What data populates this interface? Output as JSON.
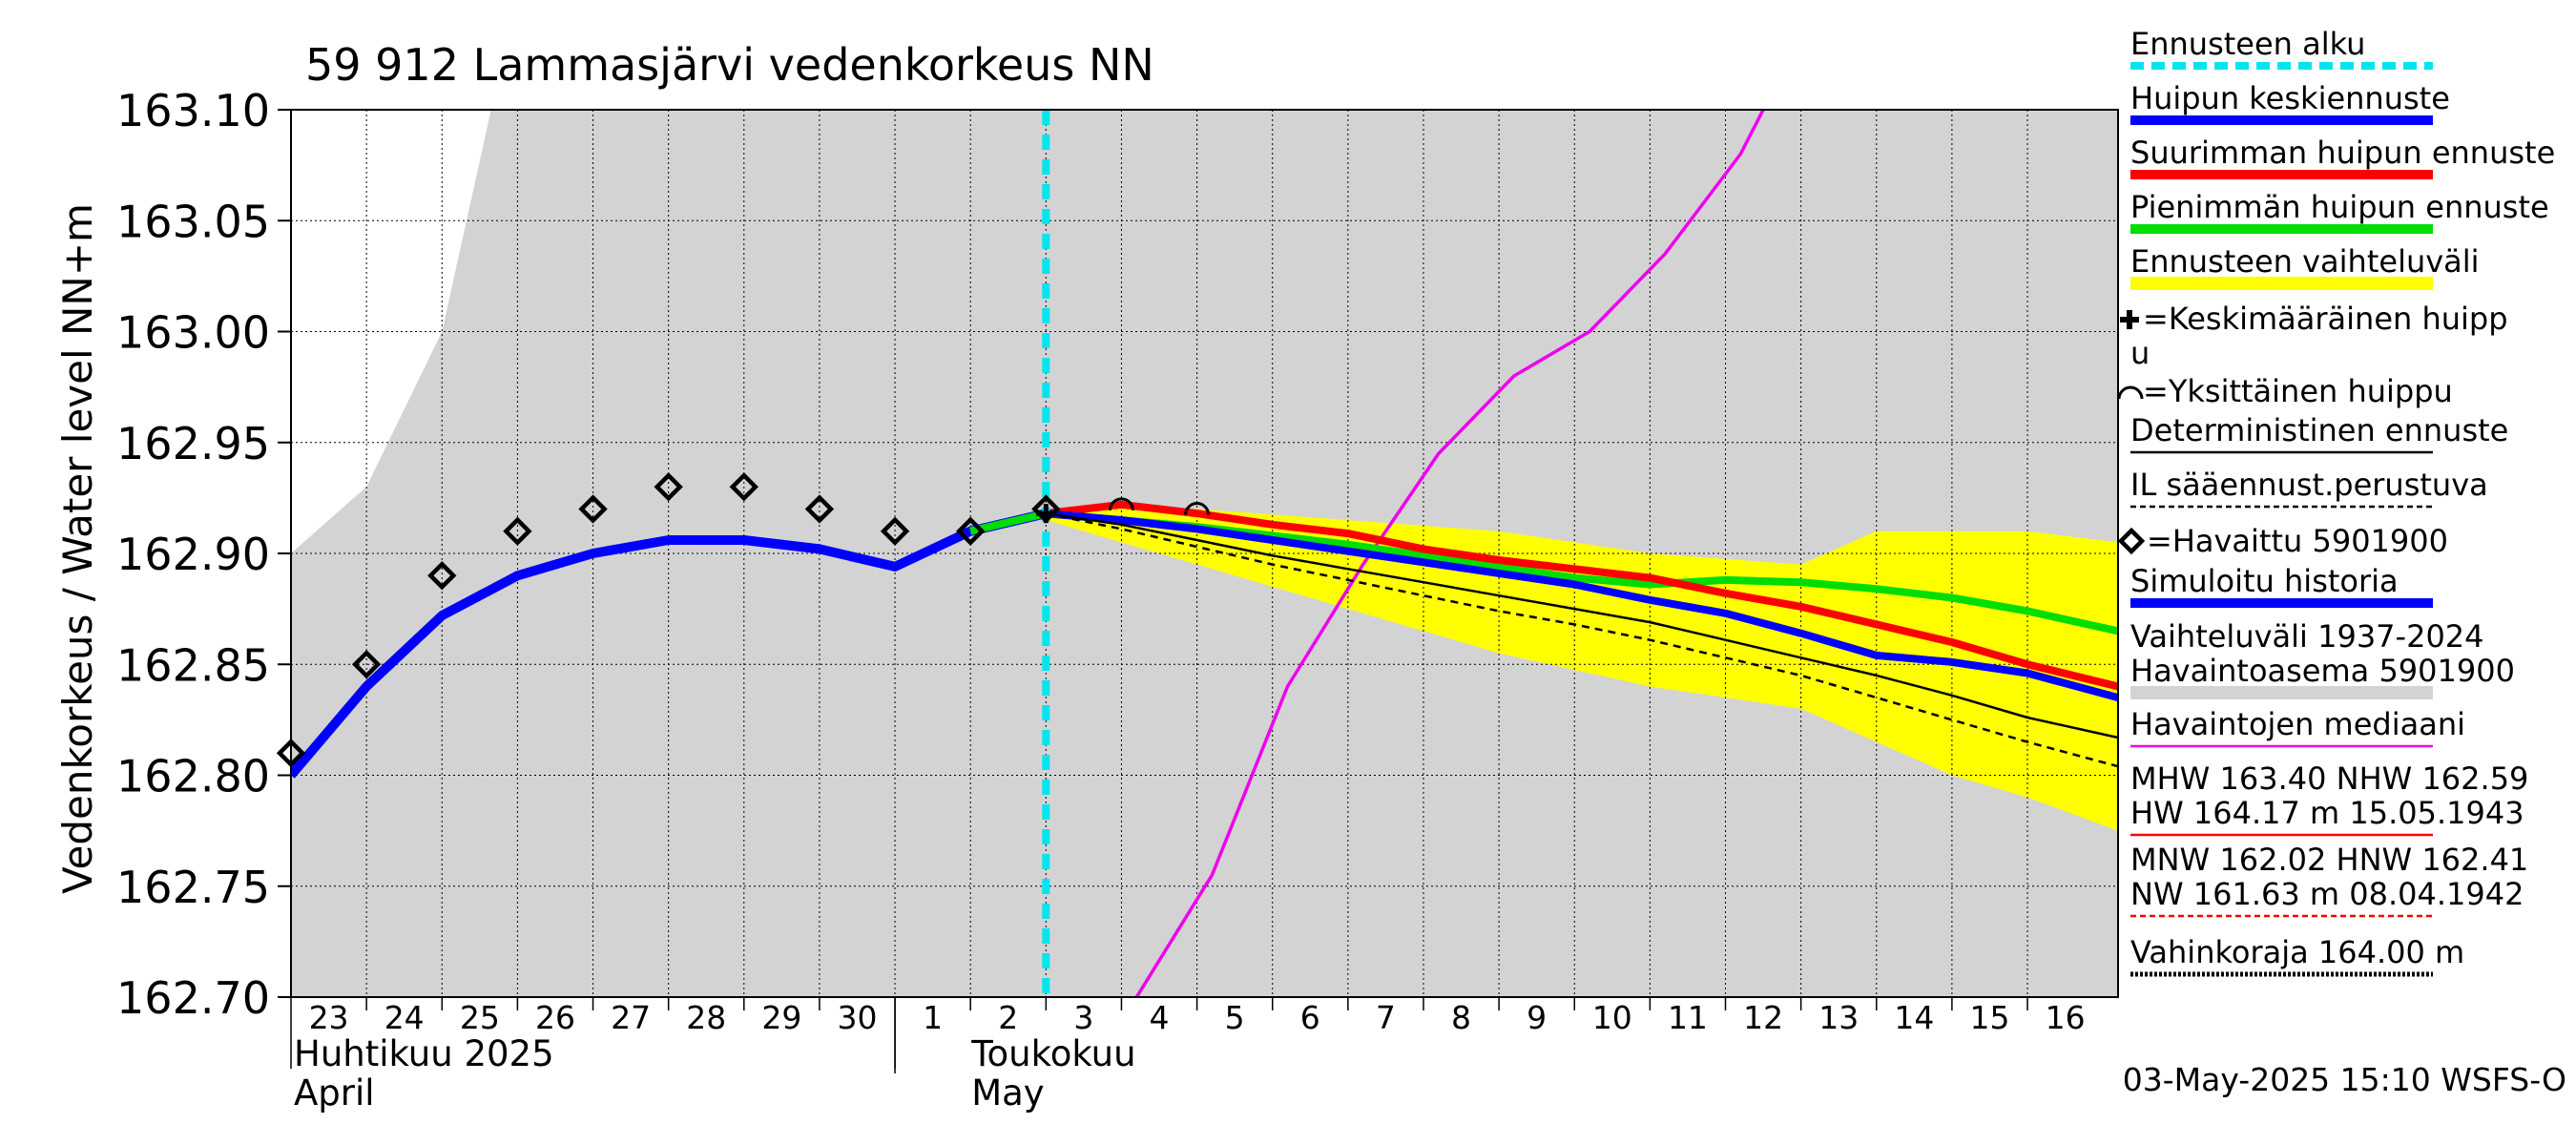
{
  "title": "59 912 Lammasjärvi vedenkorkeus NN",
  "ylabel": "Vedenkorkeus / Water level    NN+m",
  "timestamp": "03-May-2025 15:10 WSFS-O",
  "x_month_labels": [
    {
      "id": "apr-fi",
      "text": "Huhtikuu  2025"
    },
    {
      "id": "apr-en",
      "text": "April"
    },
    {
      "id": "may-fi",
      "text": "Toukokuu"
    },
    {
      "id": "may-en",
      "text": "May"
    }
  ],
  "legend": [
    {
      "id": "forecast-start",
      "text": "Ennusteen alku",
      "color": "#00e5ee",
      "style": "dashed-thick"
    },
    {
      "id": "peak-mean",
      "text": "Huipun keskiennuste",
      "color": "#0000ff",
      "style": "thick"
    },
    {
      "id": "peak-max",
      "text": "Suurimman huipun ennuste",
      "color": "#ff0000",
      "style": "thick"
    },
    {
      "id": "peak-min",
      "text": "Pienimmän huipun ennuste",
      "color": "#00dd00",
      "style": "thick"
    },
    {
      "id": "range",
      "text": "Ennusteen vaihteluväli",
      "color": "#ffff00",
      "style": "band"
    },
    {
      "id": "mean-peak-marker",
      "text": "=Keskimääräinen huipp",
      "text2": "u",
      "color": "#000000",
      "style": "plus"
    },
    {
      "id": "single-peak-marker",
      "text": "=Yksittäinen huippu",
      "color": "#000000",
      "style": "arc"
    },
    {
      "id": "deterministic",
      "text": "Deterministinen ennuste",
      "color": "#000000",
      "style": "thin"
    },
    {
      "id": "il-forecast",
      "text": "IL sääennust.perustuva",
      "color": "#000000",
      "style": "dashed-thin"
    },
    {
      "id": "observed",
      "text": "=Havaittu 5901900",
      "color": "#000000",
      "style": "diamond"
    },
    {
      "id": "simulated",
      "text": "Simuloitu historia",
      "color": "#0000ff",
      "style": "thick"
    },
    {
      "id": "variation",
      "text": "Vaihteluväli 1937-2024",
      "text2": " Havaintoasema 5901900",
      "color": "#d3d3d3",
      "style": "band"
    },
    {
      "id": "median",
      "text": "Havaintojen mediaani",
      "color": "#ee00ee",
      "style": "thin"
    },
    {
      "id": "mhw",
      "text": "MHW 163.40 NHW 162.59",
      "text2": "HW 164.17 m 15.05.1943",
      "color": "#ff0000",
      "style": "thin"
    },
    {
      "id": "mnw",
      "text": "MNW 162.02 HNW 162.41",
      "text2": "NW 161.63 m 08.04.1942",
      "color": "#ff0000",
      "style": "dashed-thin"
    },
    {
      "id": "damage",
      "text": "Vahinkoraja 164.00 m",
      "color": "#000000",
      "style": "dotted-thick"
    }
  ],
  "chart_data": {
    "type": "line",
    "title": "59 912 Lammasjärvi vedenkorkeus NN",
    "xlabel": "",
    "ylabel": "Vedenkorkeus / Water level    NN+m",
    "x_unit": "days since 2025-04-23 00:00",
    "xlim": [
      0,
      24.2
    ],
    "ylim": [
      162.7,
      163.1
    ],
    "yticks": [
      162.7,
      162.75,
      162.8,
      162.85,
      162.9,
      162.95,
      163.0,
      163.05,
      163.1
    ],
    "ytick_labels": [
      "162.70",
      "162.75",
      "162.80",
      "162.85",
      "162.90",
      "162.95",
      "163.00",
      "163.05",
      "163.10"
    ],
    "day_ticks": [
      {
        "x": 0,
        "label": "23"
      },
      {
        "x": 1,
        "label": "24"
      },
      {
        "x": 2,
        "label": "25"
      },
      {
        "x": 3,
        "label": "26"
      },
      {
        "x": 4,
        "label": "27"
      },
      {
        "x": 5,
        "label": "28"
      },
      {
        "x": 6,
        "label": "29"
      },
      {
        "x": 7,
        "label": "30"
      },
      {
        "x": 8,
        "label": "1"
      },
      {
        "x": 9,
        "label": "2"
      },
      {
        "x": 10,
        "label": "3"
      },
      {
        "x": 11,
        "label": "4"
      },
      {
        "x": 12,
        "label": "5"
      },
      {
        "x": 13,
        "label": "6"
      },
      {
        "x": 14,
        "label": "7"
      },
      {
        "x": 15,
        "label": "8"
      },
      {
        "x": 16,
        "label": "9"
      },
      {
        "x": 17,
        "label": "10"
      },
      {
        "x": 18,
        "label": "11"
      },
      {
        "x": 19,
        "label": "12"
      },
      {
        "x": 20,
        "label": "13"
      },
      {
        "x": 21,
        "label": "14"
      },
      {
        "x": 22,
        "label": "15"
      },
      {
        "x": 23,
        "label": "16"
      }
    ],
    "month_boundary_x": 8,
    "forecast_start_x": 10.0,
    "series": [
      {
        "name": "Vaihteluväli 1937-2024 (upper)",
        "color": "#d3d3d3",
        "x": [
          0,
          1,
          2,
          2.65,
          24.2
        ],
        "y": [
          162.9,
          162.93,
          163.0,
          163.1,
          163.1
        ]
      },
      {
        "name": "Ennusteen vaihteluväli (upper)",
        "color": "#ffff00",
        "x": [
          10,
          12,
          14,
          16,
          18,
          20,
          21,
          22,
          23,
          24.2
        ],
        "y": [
          162.92,
          162.92,
          162.915,
          162.91,
          162.9,
          162.895,
          162.91,
          162.91,
          162.91,
          162.905
        ]
      },
      {
        "name": "Ennusteen vaihteluväli (lower)",
        "color": "#ffff00",
        "x": [
          10,
          12,
          14,
          16,
          18,
          20,
          21,
          22,
          23,
          24.2
        ],
        "y": [
          162.915,
          162.895,
          162.875,
          162.855,
          162.84,
          162.83,
          162.815,
          162.8,
          162.79,
          162.775
        ]
      },
      {
        "name": "Havaintojen mediaani",
        "color": "#ee00ee",
        "x": [
          10.3,
          11.2,
          12.2,
          13.2,
          14.2,
          15.2,
          16.2,
          17.2,
          18.2,
          19.2,
          19.5
        ],
        "y": [
          162.67,
          162.7,
          162.755,
          162.84,
          162.895,
          162.945,
          162.98,
          163.0,
          163.035,
          163.08,
          163.1
        ]
      },
      {
        "name": "Simuloitu historia",
        "color": "#0000ff",
        "x": [
          0,
          1,
          2,
          3,
          4,
          5,
          6,
          7,
          8,
          9,
          10
        ],
        "y": [
          162.8,
          162.84,
          162.872,
          162.89,
          162.9,
          162.906,
          162.906,
          162.902,
          162.894,
          162.91,
          162.918
        ]
      },
      {
        "name": "Pienimmän huipun ennuste",
        "color": "#00dd00",
        "x": [
          9,
          10,
          11,
          12,
          13,
          14,
          15,
          16,
          17,
          18,
          19,
          20,
          21,
          22,
          23,
          24.2
        ],
        "y": [
          162.91,
          162.918,
          162.915,
          162.912,
          162.908,
          162.904,
          162.899,
          162.894,
          162.889,
          162.886,
          162.888,
          162.887,
          162.884,
          162.88,
          162.874,
          162.865
        ]
      },
      {
        "name": "Suurimman huipun ennuste",
        "color": "#ff0000",
        "x": [
          10,
          11,
          12,
          13,
          14,
          15,
          16,
          17,
          18,
          19,
          20,
          21,
          22,
          23,
          24.2
        ],
        "y": [
          162.918,
          162.922,
          162.918,
          162.913,
          162.909,
          162.902,
          162.897,
          162.893,
          162.889,
          162.882,
          162.876,
          162.868,
          162.86,
          162.85,
          162.84
        ]
      },
      {
        "name": "Huipun keskiennuste",
        "color": "#0000ff",
        "x": [
          10,
          11,
          12,
          13,
          14,
          15,
          16,
          17,
          18,
          19,
          20,
          21,
          22,
          23,
          24.2
        ],
        "y": [
          162.918,
          162.915,
          162.911,
          162.906,
          162.901,
          162.896,
          162.891,
          162.886,
          162.879,
          162.873,
          162.864,
          162.854,
          162.851,
          162.846,
          162.835
        ]
      },
      {
        "name": "Deterministinen ennuste",
        "color": "#000000",
        "x": [
          10,
          11,
          12,
          13,
          14,
          15,
          16,
          17,
          18,
          19,
          20,
          21,
          22,
          23,
          24.2
        ],
        "y": [
          162.918,
          162.913,
          162.906,
          162.899,
          162.893,
          162.887,
          162.881,
          162.875,
          162.869,
          162.861,
          162.853,
          162.845,
          162.836,
          162.826,
          162.817
        ]
      },
      {
        "name": "IL sääennust.perustuva",
        "color": "#000000",
        "x": [
          10,
          11,
          12,
          13,
          14,
          15,
          16,
          17,
          18,
          19,
          20,
          21,
          22,
          23,
          24.2
        ],
        "y": [
          162.918,
          162.911,
          162.903,
          162.895,
          162.888,
          162.881,
          162.874,
          162.868,
          162.861,
          162.853,
          162.845,
          162.835,
          162.825,
          162.815,
          162.804
        ]
      }
    ],
    "observed": {
      "name": "Havaittu 5901900",
      "x": [
        0,
        1,
        2,
        3,
        4,
        5,
        6,
        7,
        8,
        9,
        10
      ],
      "y": [
        162.81,
        162.85,
        162.89,
        162.91,
        162.92,
        162.93,
        162.93,
        162.92,
        162.91,
        162.91,
        162.92
      ]
    },
    "single_peaks": {
      "name": "Yksittäinen huippu",
      "x": [
        11.0,
        12.0
      ],
      "y": [
        162.922,
        162.92
      ]
    },
    "mean_peaks": {
      "name": "Keskimääräinen huippu",
      "x": [
        10.0
      ],
      "y": [
        162.918
      ]
    }
  }
}
